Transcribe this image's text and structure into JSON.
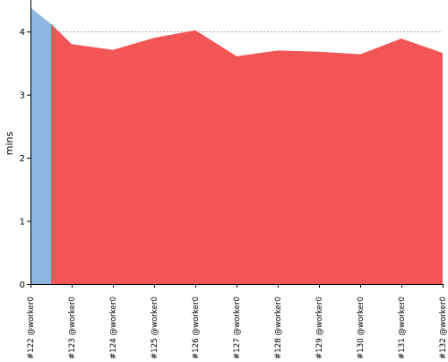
{
  "chart_data": {
    "type": "area",
    "ylabel": "mins",
    "xlabel": "",
    "title": "",
    "ylim": [
      0,
      4.5
    ],
    "yticks": [
      0,
      1,
      2,
      3,
      4
    ],
    "grid": "horizontal dashed at y ticks",
    "categories": [
      "#122 @worker0",
      "#123 @worker0",
      "#124 @worker0",
      "#125 @worker0",
      "#126 @worker0",
      "#127 @worker0",
      "#128 @worker0",
      "#129 @worker0",
      "#130 @worker0",
      "#131 @worker0",
      "#132 @worker0"
    ],
    "series": [
      {
        "color": "#8eb6e0",
        "build_range": [
          "#122 @worker0",
          "#123 @worker0"
        ],
        "x": [
          0,
          0.5,
          0.5
        ],
        "values": [
          4.38,
          4.12,
          4.12
        ]
      },
      {
        "color": "#f25555",
        "build_range": [
          "#123 @worker0",
          "#132 @worker0"
        ],
        "x": [
          0.5,
          1,
          2,
          3,
          4,
          5,
          6,
          7,
          8,
          9,
          10
        ],
        "values": [
          4.12,
          3.8,
          3.71,
          3.9,
          4.02,
          3.61,
          3.7,
          3.68,
          3.64,
          3.89,
          3.66
        ]
      }
    ]
  }
}
